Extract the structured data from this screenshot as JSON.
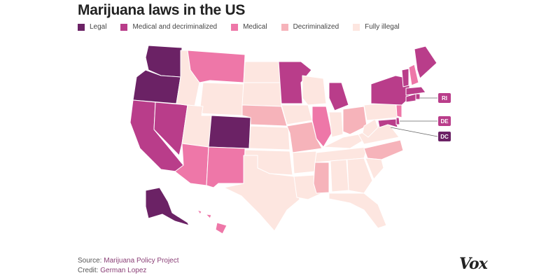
{
  "title": "Marijuana laws in the US",
  "legend": [
    {
      "label": "Legal",
      "color": "#6b2265"
    },
    {
      "label": "Medical and decriminalized",
      "color": "#b93d8a"
    },
    {
      "label": "Medical",
      "color": "#ee77a8"
    },
    {
      "label": "Decriminalized",
      "color": "#f6b3ba"
    },
    {
      "label": "Fully illegal",
      "color": "#fde6e0"
    }
  ],
  "callouts": {
    "ri": "RI",
    "de": "DE",
    "dc": "DC"
  },
  "footer": {
    "source_label": "Source:",
    "source_value": "Marijuana Policy Project",
    "credit_label": "Credit:",
    "credit_value": "German Lopez"
  },
  "logo": "Vox"
}
